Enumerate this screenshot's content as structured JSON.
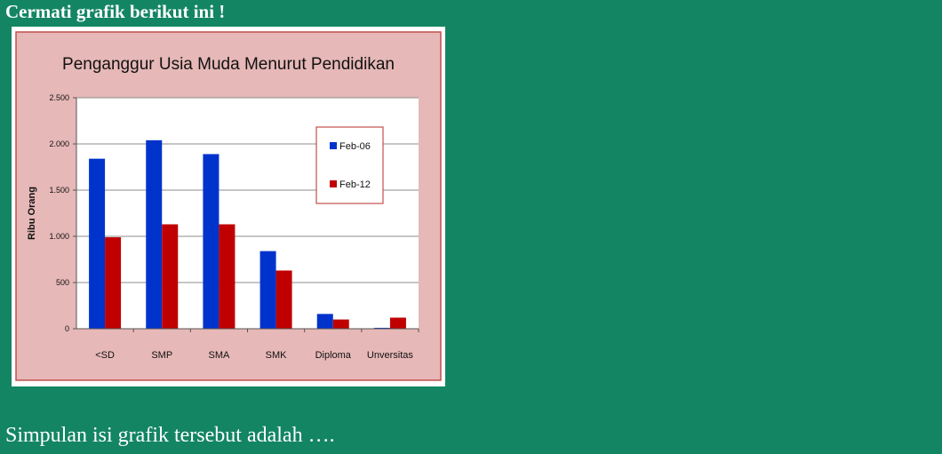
{
  "page": {
    "heading": "Cermati grafik berikut ini !",
    "question": "Simpulan isi grafik tersebut adalah …."
  },
  "colors": {
    "page_background": "#138563",
    "chart_background": "#e6b8b7",
    "series_feb06": "#0033cc",
    "series_feb12": "#c00000"
  },
  "chart_data": {
    "type": "bar",
    "title": "Penganggur Usia Muda Menurut Pendidikan",
    "xlabel": "",
    "ylabel": "Ribu Orang",
    "ylim": [
      0,
      2500
    ],
    "yticks": [
      0,
      500,
      1000,
      1500,
      2000,
      2500
    ],
    "ytick_labels": [
      "0",
      "500",
      "1.000",
      "1.500",
      "2.000",
      "2.500"
    ],
    "grid": true,
    "legend_position": "top-right",
    "categories": [
      "<SD",
      "SMP",
      "SMA",
      "SMK",
      "Diploma",
      "Unversitas"
    ],
    "series": [
      {
        "name": "Feb-06",
        "color": "#0033cc",
        "values": [
          1840,
          2040,
          1890,
          840,
          160,
          10
        ]
      },
      {
        "name": "Feb-12",
        "color": "#c00000",
        "values": [
          990,
          1130,
          1130,
          630,
          100,
          120
        ]
      }
    ]
  }
}
